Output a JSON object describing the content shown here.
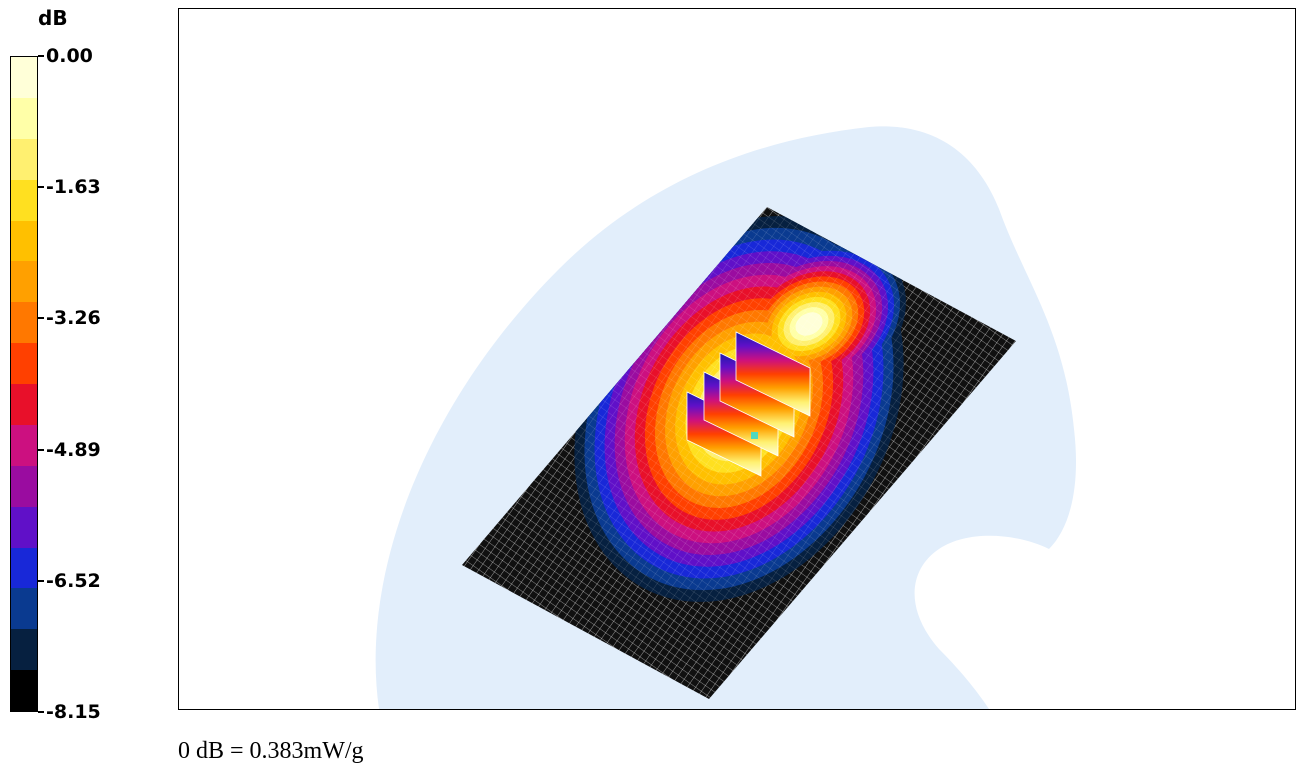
{
  "chart_data": {
    "type": "heatmap",
    "title": "",
    "colorbar": {
      "unit_label": "dB",
      "tick_labels": [
        "0.00",
        "-1.63",
        "-3.26",
        "-4.89",
        "-6.52",
        "-8.15"
      ],
      "tick_values": [
        0.0,
        -1.63,
        -3.26,
        -4.89,
        -6.52,
        -8.15
      ],
      "range": [
        -8.15,
        0.0
      ],
      "bands": 15,
      "colors_top_to_bottom": [
        "#FFFFD8",
        "#FFFFA8",
        "#FFF070",
        "#FFE020",
        "#FFC000",
        "#FFA000",
        "#FF7800",
        "#FF4000",
        "#E8102A",
        "#CC1080",
        "#9A0CA0",
        "#6010C8",
        "#1828D8",
        "#0A3A90",
        "#062040",
        "#000000"
      ]
    },
    "footer_note": "0 dB = 0.383mW/g"
  }
}
